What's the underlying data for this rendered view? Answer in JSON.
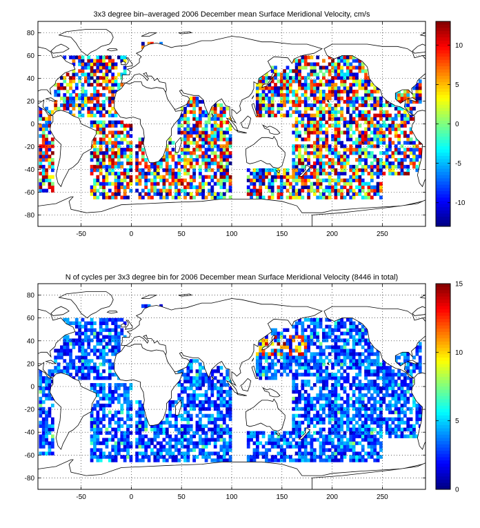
{
  "chart_data": [
    {
      "type": "heatmap",
      "title": "3x3 degree bin–averaged 2006 December mean Surface Meridional Velocity, cm/s",
      "xlim": [
        -93,
        293
      ],
      "ylim": [
        -90,
        90
      ],
      "x_ticks": [
        -50,
        0,
        50,
        100,
        150,
        200,
        250
      ],
      "x_tick_labels": [
        "-50",
        "0",
        "50",
        "100",
        "150",
        "200",
        "250"
      ],
      "y_ticks": [
        80,
        60,
        40,
        20,
        0,
        -20,
        -40,
        -60,
        -80
      ],
      "y_tick_labels": [
        "80",
        "60",
        "40",
        "20",
        "0",
        "-20",
        "-40",
        "-60",
        "-80"
      ],
      "grid": "dotted",
      "bin_size_deg": 3,
      "colorbar": {
        "position": "right",
        "range": [
          -13,
          13
        ],
        "colormap": "jet",
        "ticks": [
          10,
          5,
          0,
          -5,
          -10
        ],
        "tick_labels": [
          "10",
          "5",
          "0",
          "-5",
          "-10"
        ]
      },
      "coverage_regions": [
        {
          "lon": [
            -78,
            -6
          ],
          "lat": [
            5,
            60
          ]
        },
        {
          "lon": [
            -40,
            0
          ],
          "lat": [
            -66,
            3
          ]
        },
        {
          "lon": [
            10,
            30
          ],
          "lat": [
            45,
            72
          ]
        },
        {
          "lon": [
            5,
            100
          ],
          "lat": [
            -66,
            -12
          ]
        },
        {
          "lon": [
            45,
            78
          ],
          "lat": [
            -12,
            25
          ]
        },
        {
          "lon": [
            80,
            100
          ],
          "lat": [
            -12,
            18
          ]
        },
        {
          "lon": [
            125,
            160
          ],
          "lat": [
            5,
            50
          ]
        },
        {
          "lon": [
            160,
            250
          ],
          "lat": [
            -66,
            60
          ]
        },
        {
          "lon": [
            115,
            160
          ],
          "lat": [
            -66,
            -38
          ]
        },
        {
          "lon": [
            250,
            290
          ],
          "lat": [
            -45,
            45
          ]
        }
      ]
    },
    {
      "type": "heatmap",
      "title": "N of cycles per 3x3 degree bin for 2006 December mean Surface Meridional Velocity (8446 in total)",
      "xlim": [
        -93,
        293
      ],
      "ylim": [
        -90,
        90
      ],
      "x_ticks": [
        -50,
        0,
        50,
        100,
        150,
        200,
        250
      ],
      "x_tick_labels": [
        "-50",
        "0",
        "50",
        "100",
        "150",
        "200",
        "250"
      ],
      "y_ticks": [
        80,
        60,
        40,
        20,
        0,
        -20,
        -40,
        -60,
        -80
      ],
      "y_tick_labels": [
        "80",
        "60",
        "40",
        "20",
        "0",
        "-20",
        "-40",
        "-60",
        "-80"
      ],
      "grid": "dotted",
      "bin_size_deg": 3,
      "total_cycles": 8446,
      "colorbar": {
        "position": "right",
        "range": [
          0,
          15
        ],
        "colormap": "jet",
        "ticks": [
          15,
          10,
          5,
          0
        ],
        "tick_labels": [
          "15",
          "10",
          "5",
          "0"
        ]
      },
      "hotspot": {
        "lon": [
          125,
          175
        ],
        "lat": [
          28,
          45
        ],
        "value_range": [
          8,
          15
        ]
      },
      "typical_value_range": [
        1,
        5
      ]
    }
  ]
}
